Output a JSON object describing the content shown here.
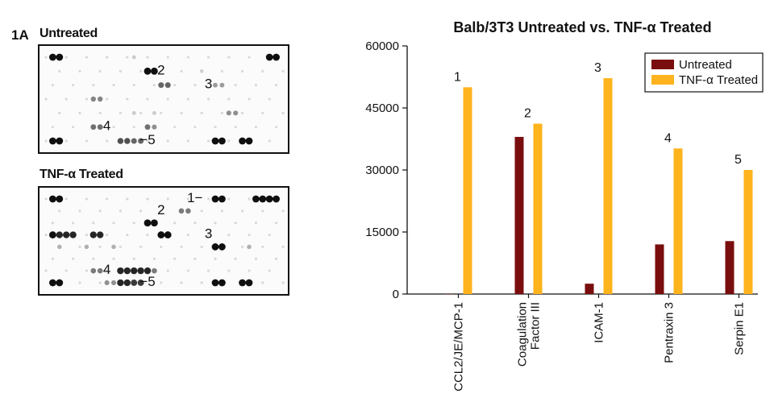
{
  "figure_label": "1A",
  "blots": [
    {
      "title": "Untreated",
      "callouts": [
        {
          "text": "2",
          "col": 17,
          "row": 1
        },
        {
          "text": "3",
          "col": 24,
          "row": 2
        },
        {
          "text": "4",
          "col": 9,
          "row": 5
        },
        {
          "text": "−5",
          "col": 15,
          "row": 6
        }
      ],
      "spots": [
        {
          "c": 1,
          "r": 0,
          "v": 1
        },
        {
          "c": 2,
          "r": 0,
          "v": 1
        },
        {
          "c": 33,
          "r": 0,
          "v": 1
        },
        {
          "c": 34,
          "r": 0,
          "v": 1
        },
        {
          "c": 13,
          "r": 0,
          "v": 0.12
        },
        {
          "c": 15,
          "r": 1,
          "v": 1
        },
        {
          "c": 16,
          "r": 1,
          "v": 1
        },
        {
          "c": 23,
          "r": 1,
          "v": 0.1
        },
        {
          "c": 17,
          "r": 2,
          "v": 0.6
        },
        {
          "c": 18,
          "r": 2,
          "v": 0.6
        },
        {
          "c": 25,
          "r": 2,
          "v": 0.35
        },
        {
          "c": 26,
          "r": 2,
          "v": 0.35
        },
        {
          "c": 7,
          "r": 3,
          "v": 0.45
        },
        {
          "c": 8,
          "r": 3,
          "v": 0.45
        },
        {
          "c": 27,
          "r": 4,
          "v": 0.4
        },
        {
          "c": 28,
          "r": 4,
          "v": 0.4
        },
        {
          "c": 13,
          "r": 4,
          "v": 0.12
        },
        {
          "c": 16,
          "r": 4,
          "v": 0.12
        },
        {
          "c": 7,
          "r": 5,
          "v": 0.55
        },
        {
          "c": 8,
          "r": 5,
          "v": 0.55
        },
        {
          "c": 15,
          "r": 5,
          "v": 0.55
        },
        {
          "c": 16,
          "r": 5,
          "v": 0.4
        },
        {
          "c": 1,
          "r": 6,
          "v": 1
        },
        {
          "c": 2,
          "r": 6,
          "v": 1
        },
        {
          "c": 11,
          "r": 6,
          "v": 0.7
        },
        {
          "c": 12,
          "r": 6,
          "v": 0.7
        },
        {
          "c": 13,
          "r": 6,
          "v": 0.6
        },
        {
          "c": 14,
          "r": 6,
          "v": 0.6
        },
        {
          "c": 25,
          "r": 6,
          "v": 1
        },
        {
          "c": 26,
          "r": 6,
          "v": 1
        },
        {
          "c": 29,
          "r": 6,
          "v": 1
        },
        {
          "c": 30,
          "r": 6,
          "v": 1
        }
      ]
    },
    {
      "title": "TNF-α Treated",
      "callouts": [
        {
          "text": "1−",
          "col": 22,
          "row": 0
        },
        {
          "text": "2",
          "col": 17,
          "row": 1
        },
        {
          "text": "3",
          "col": 24,
          "row": 3
        },
        {
          "text": "4",
          "col": 9,
          "row": 6
        },
        {
          "text": "−5",
          "col": 15,
          "row": 7
        }
      ],
      "spots": [
        {
          "c": 1,
          "r": 0,
          "v": 1
        },
        {
          "c": 2,
          "r": 0,
          "v": 1
        },
        {
          "c": 25,
          "r": 0,
          "v": 1
        },
        {
          "c": 26,
          "r": 0,
          "v": 1
        },
        {
          "c": 31,
          "r": 0,
          "v": 1
        },
        {
          "c": 32,
          "r": 0,
          "v": 1
        },
        {
          "c": 33,
          "r": 0,
          "v": 1
        },
        {
          "c": 34,
          "r": 0,
          "v": 1
        },
        {
          "c": 20,
          "r": 1,
          "v": 0.5
        },
        {
          "c": 21,
          "r": 1,
          "v": 0.5
        },
        {
          "c": 15,
          "r": 2,
          "v": 1
        },
        {
          "c": 16,
          "r": 2,
          "v": 1
        },
        {
          "c": 1,
          "r": 3,
          "v": 1
        },
        {
          "c": 2,
          "r": 3,
          "v": 0.9
        },
        {
          "c": 3,
          "r": 3,
          "v": 0.9
        },
        {
          "c": 4,
          "r": 3,
          "v": 0.9
        },
        {
          "c": 7,
          "r": 3,
          "v": 0.9
        },
        {
          "c": 8,
          "r": 3,
          "v": 0.9
        },
        {
          "c": 17,
          "r": 3,
          "v": 1
        },
        {
          "c": 18,
          "r": 3,
          "v": 1
        },
        {
          "c": 25,
          "r": 4,
          "v": 1
        },
        {
          "c": 26,
          "r": 4,
          "v": 1
        },
        {
          "c": 2,
          "r": 4,
          "v": 0.25
        },
        {
          "c": 6,
          "r": 4,
          "v": 0.25
        },
        {
          "c": 10,
          "r": 4,
          "v": 0.25
        },
        {
          "c": 30,
          "r": 4,
          "v": 0.25
        },
        {
          "c": 7,
          "r": 6,
          "v": 0.5
        },
        {
          "c": 8,
          "r": 6,
          "v": 0.5
        },
        {
          "c": 11,
          "r": 6,
          "v": 0.9
        },
        {
          "c": 12,
          "r": 6,
          "v": 0.9
        },
        {
          "c": 13,
          "r": 6,
          "v": 0.9
        },
        {
          "c": 14,
          "r": 6,
          "v": 0.9
        },
        {
          "c": 15,
          "r": 6,
          "v": 0.9
        },
        {
          "c": 16,
          "r": 6,
          "v": 0.5
        },
        {
          "c": 1,
          "r": 7,
          "v": 1
        },
        {
          "c": 2,
          "r": 7,
          "v": 1
        },
        {
          "c": 9,
          "r": 7,
          "v": 0.4
        },
        {
          "c": 10,
          "r": 7,
          "v": 0.4
        },
        {
          "c": 11,
          "r": 7,
          "v": 0.9
        },
        {
          "c": 12,
          "r": 7,
          "v": 0.9
        },
        {
          "c": 13,
          "r": 7,
          "v": 0.8
        },
        {
          "c": 14,
          "r": 7,
          "v": 0.8
        },
        {
          "c": 25,
          "r": 7,
          "v": 1
        },
        {
          "c": 26,
          "r": 7,
          "v": 1
        },
        {
          "c": 29,
          "r": 7,
          "v": 1
        },
        {
          "c": 30,
          "r": 7,
          "v": 1
        }
      ]
    }
  ],
  "chart_data": {
    "type": "bar",
    "title": "Balb/3T3 Untreated vs. TNF-α Treated",
    "xlabel": "",
    "ylabel": "",
    "ylim": [
      0,
      60000
    ],
    "yticks": [
      0,
      15000,
      30000,
      45000,
      60000
    ],
    "grid": false,
    "legend_position": "top-right",
    "categories": [
      [
        "CCL2/JE/MCP-1"
      ],
      [
        "Coagulation",
        "Factor III"
      ],
      [
        "ICAM-1"
      ],
      [
        "Pentraxin 3"
      ],
      [
        "Serpin E1"
      ]
    ],
    "bar_labels": [
      "1",
      "2",
      "3",
      "4",
      "5"
    ],
    "series": [
      {
        "name": "Untreated",
        "color": "#7a0e0e",
        "values": [
          0,
          38000,
          2500,
          12000,
          12800
        ]
      },
      {
        "name": "TNF-α Treated",
        "color": "#ffb31c",
        "values": [
          50000,
          41200,
          52200,
          35200,
          30000
        ]
      }
    ]
  }
}
